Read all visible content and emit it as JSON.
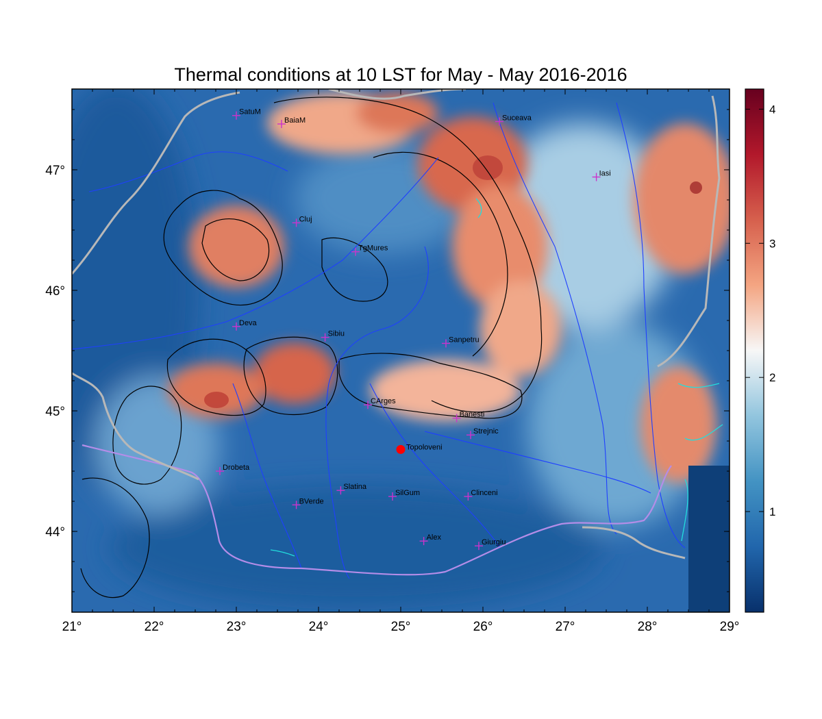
{
  "title": "Thermal conditions at 10 LST for May - May  2016-2016",
  "map": {
    "lon_range": [
      21,
      29
    ],
    "lat_range": [
      43.33,
      47.67
    ],
    "x_ticks": [
      {
        "value": 21,
        "label": "21°"
      },
      {
        "value": 22,
        "label": "22°"
      },
      {
        "value": 23,
        "label": "23°"
      },
      {
        "value": 24,
        "label": "24°"
      },
      {
        "value": 25,
        "label": "25°"
      },
      {
        "value": 26,
        "label": "26°"
      },
      {
        "value": 27,
        "label": "27°"
      },
      {
        "value": 28,
        "label": "28°"
      },
      {
        "value": 29,
        "label": "29°"
      }
    ],
    "y_ticks": [
      {
        "value": 44,
        "label": "44°"
      },
      {
        "value": 45,
        "label": "45°"
      },
      {
        "value": 46,
        "label": "46°"
      },
      {
        "value": 47,
        "label": "47°"
      }
    ]
  },
  "colorbar": {
    "range": [
      0.25,
      4.15
    ],
    "ticks": [
      {
        "value": 1,
        "label": "1"
      },
      {
        "value": 2,
        "label": "2"
      },
      {
        "value": 3,
        "label": "3"
      },
      {
        "value": 4,
        "label": "4"
      }
    ],
    "colors": [
      "#08306b",
      "#2166ac",
      "#4393c3",
      "#92c5de",
      "#f7f7f7",
      "#f4a582",
      "#d6604d",
      "#b2182b",
      "#67001f"
    ]
  },
  "stations": [
    {
      "name": "SatuM",
      "lon": 23.0,
      "lat": 47.45
    },
    {
      "name": "BaiaM",
      "lon": 23.55,
      "lat": 47.38
    },
    {
      "name": "Suceava",
      "lon": 26.2,
      "lat": 47.4
    },
    {
      "name": "Iasi",
      "lon": 27.38,
      "lat": 46.94
    },
    {
      "name": "Cluj",
      "lon": 23.73,
      "lat": 46.56
    },
    {
      "name": "TgMures",
      "lon": 24.45,
      "lat": 46.32
    },
    {
      "name": "Deva",
      "lon": 23.0,
      "lat": 45.7
    },
    {
      "name": "Sibiu",
      "lon": 24.08,
      "lat": 45.61
    },
    {
      "name": "Sanpetru",
      "lon": 25.55,
      "lat": 45.56
    },
    {
      "name": "CArges",
      "lon": 24.6,
      "lat": 45.05
    },
    {
      "name": "Banesti",
      "lon": 25.68,
      "lat": 44.94
    },
    {
      "name": "Strejnic",
      "lon": 25.85,
      "lat": 44.8
    },
    {
      "name": "Drobeta",
      "lon": 22.8,
      "lat": 44.5
    },
    {
      "name": "Slatina",
      "lon": 24.27,
      "lat": 44.34
    },
    {
      "name": "SilGum",
      "lon": 24.9,
      "lat": 44.29
    },
    {
      "name": "Clinceni",
      "lon": 25.82,
      "lat": 44.29
    },
    {
      "name": "BVerde",
      "lon": 23.73,
      "lat": 44.22
    },
    {
      "name": "Alex",
      "lon": 25.28,
      "lat": 43.92
    },
    {
      "name": "Giurgiu",
      "lon": 25.95,
      "lat": 43.88
    }
  ],
  "highlight": {
    "name": "Topoloveni",
    "lon": 25.0,
    "lat": 44.68,
    "color": "#ff0000"
  },
  "colors": {
    "station_marker": "#cc33cc",
    "river": "#1f3fff",
    "contour": "#000000",
    "border": "#b8b8b8",
    "water": "#22dddd"
  }
}
